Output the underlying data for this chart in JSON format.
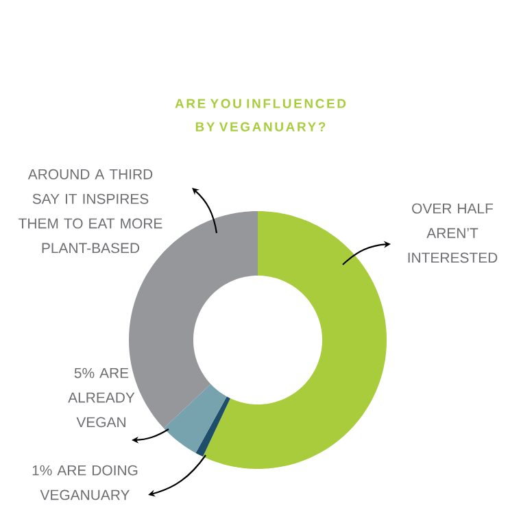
{
  "chart_data": {
    "type": "donut",
    "title": "ARE YOU INFLUENCED BY VEGANUARY?",
    "categories": [
      "OVER HALF AREN’T INTERESTED",
      "1% ARE DOING VEGANUARY",
      "5% ARE ALREADY VEGAN",
      "AROUND A THIRD SAY IT INSPIRES THEM TO EAT MORE PLANT-BASED"
    ],
    "values": [
      57,
      1,
      5,
      37
    ],
    "colors": [
      "#a8cc3c",
      "#1f4e6b",
      "#77a3ae",
      "#96979b"
    ]
  }
}
